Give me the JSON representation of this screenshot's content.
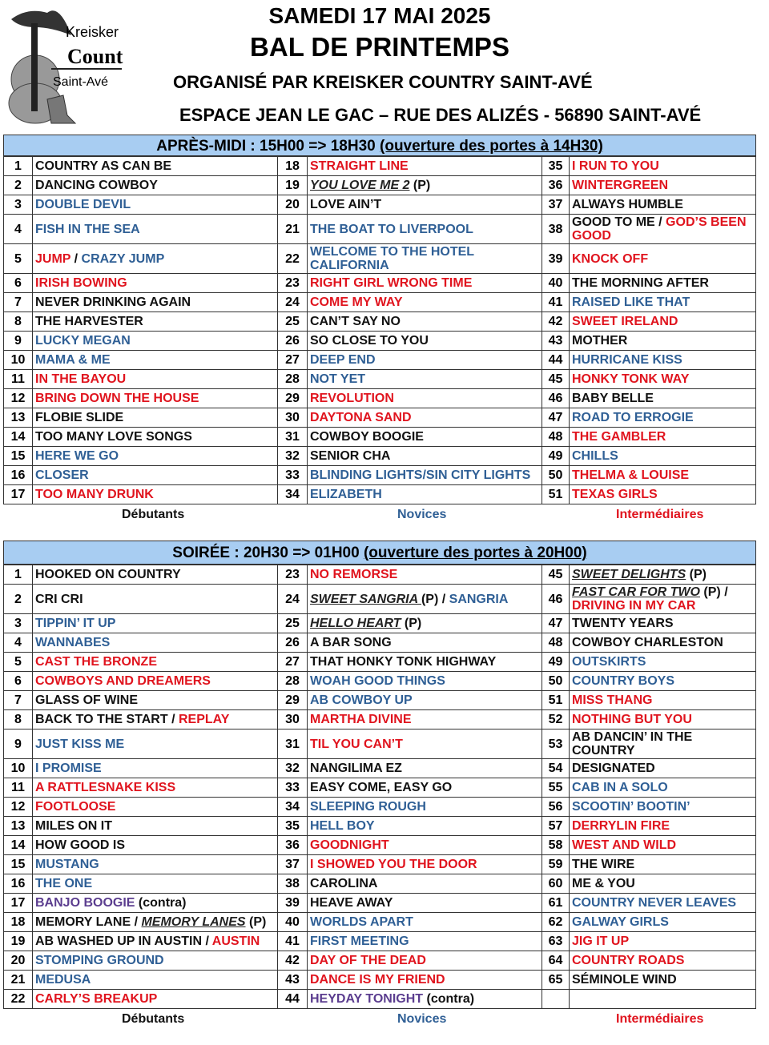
{
  "logo": {
    "line1": "Kreisker",
    "line2": "Country",
    "line3": "Saint-Avé"
  },
  "header": {
    "date": "SAMEDI 17 MAI 2025",
    "event": "BAL DE PRINTEMPS",
    "organizer": "ORGANISÉ PAR KREISKER COUNTRY SAINT-AVÉ",
    "venue": "ESPACE JEAN LE GAC – RUE DES ALIZÉS - 56890 SAINT-AVÉ"
  },
  "colors": {
    "black": "#111111",
    "blue": "#2f5f95",
    "red": "#e0141e",
    "purple": "#5b3d8f",
    "band": "#a8cdf2"
  },
  "levels": {
    "beginner": "Débutants",
    "novice": "Novices",
    "intermediate": "Intermédiaires"
  },
  "afternoon": {
    "title": "APRÈS-MIDI : 15H00 => 18H30 ",
    "doors": "(ouverture des portes à 14H30)",
    "rows": [
      [
        [
          "1",
          [
            [
              "COUNTRY AS CAN BE",
              "black"
            ]
          ]
        ],
        [
          "18",
          [
            [
              "STRAIGHT LINE",
              "red"
            ]
          ]
        ],
        [
          "35",
          [
            [
              "I RUN TO YOU",
              "red"
            ]
          ]
        ]
      ],
      [
        [
          "2",
          [
            [
              "DANCING COWBOY",
              "black"
            ]
          ]
        ],
        [
          "19",
          [
            [
              "YOU LOVE ME 2",
              "italic"
            ],
            [
              " (P)",
              "black"
            ]
          ]
        ],
        [
          "36",
          [
            [
              "WINTERGREEN",
              "red"
            ]
          ]
        ]
      ],
      [
        [
          "3",
          [
            [
              "DOUBLE DEVIL",
              "blue"
            ]
          ]
        ],
        [
          "20",
          [
            [
              "LOVE AIN’T",
              "black"
            ]
          ]
        ],
        [
          "37",
          [
            [
              "ALWAYS HUMBLE",
              "black"
            ]
          ]
        ]
      ],
      [
        [
          "4",
          [
            [
              "FISH IN THE SEA",
              "blue"
            ]
          ]
        ],
        [
          "21",
          [
            [
              "THE BOAT TO LIVERPOOL",
              "blue"
            ]
          ]
        ],
        [
          "38",
          [
            [
              "GOOD TO ME / ",
              "black"
            ],
            [
              "GOD’S BEEN GOOD",
              "red"
            ]
          ]
        ]
      ],
      [
        [
          "5",
          [
            [
              "JUMP",
              "red"
            ],
            [
              " / ",
              "black"
            ],
            [
              "CRAZY JUMP",
              "blue"
            ]
          ]
        ],
        [
          "22",
          [
            [
              "WELCOME TO THE HOTEL CALIFORNIA",
              "blue"
            ]
          ]
        ],
        [
          "39",
          [
            [
              "KNOCK OFF",
              "red"
            ]
          ]
        ]
      ],
      [
        [
          "6",
          [
            [
              "IRISH BOWING",
              "red"
            ]
          ]
        ],
        [
          "23",
          [
            [
              "RIGHT GIRL WRONG TIME",
              "red"
            ]
          ]
        ],
        [
          "40",
          [
            [
              "THE MORNING AFTER",
              "black"
            ]
          ]
        ]
      ],
      [
        [
          "7",
          [
            [
              "NEVER DRINKING AGAIN",
              "black"
            ]
          ]
        ],
        [
          "24",
          [
            [
              "COME MY WAY",
              "red"
            ]
          ]
        ],
        [
          "41",
          [
            [
              "RAISED LIKE THAT",
              "blue"
            ]
          ]
        ]
      ],
      [
        [
          "8",
          [
            [
              "THE HARVESTER",
              "black"
            ]
          ]
        ],
        [
          "25",
          [
            [
              "CAN’T SAY NO",
              "black"
            ]
          ]
        ],
        [
          "42",
          [
            [
              "SWEET IRELAND",
              "red"
            ]
          ]
        ]
      ],
      [
        [
          "9",
          [
            [
              "LUCKY MEGAN",
              "blue"
            ]
          ]
        ],
        [
          "26",
          [
            [
              "SO CLOSE TO YOU",
              "black"
            ]
          ]
        ],
        [
          "43",
          [
            [
              "MOTHER",
              "black"
            ]
          ]
        ]
      ],
      [
        [
          "10",
          [
            [
              "MAMA & ME",
              "blue"
            ]
          ]
        ],
        [
          "27",
          [
            [
              "DEEP END",
              "blue"
            ]
          ]
        ],
        [
          "44",
          [
            [
              "HURRICANE KISS",
              "blue"
            ]
          ]
        ]
      ],
      [
        [
          "11",
          [
            [
              "IN THE BAYOU",
              "red"
            ]
          ]
        ],
        [
          "28",
          [
            [
              "NOT YET",
              "blue"
            ]
          ]
        ],
        [
          "45",
          [
            [
              "HONKY TONK WAY",
              "red"
            ]
          ]
        ]
      ],
      [
        [
          "12",
          [
            [
              "BRING DOWN THE HOUSE",
              "red"
            ]
          ]
        ],
        [
          "29",
          [
            [
              "REVOLUTION",
              "red"
            ]
          ]
        ],
        [
          "46",
          [
            [
              "BABY BELLE",
              "black"
            ]
          ]
        ]
      ],
      [
        [
          "13",
          [
            [
              "FLOBIE SLIDE",
              "black"
            ]
          ]
        ],
        [
          "30",
          [
            [
              "DAYTONA SAND",
              "red"
            ]
          ]
        ],
        [
          "47",
          [
            [
              "ROAD TO ERROGIE",
              "blue"
            ]
          ]
        ]
      ],
      [
        [
          "14",
          [
            [
              "TOO MANY LOVE SONGS",
              "black"
            ]
          ]
        ],
        [
          "31",
          [
            [
              "COWBOY BOOGIE",
              "black"
            ]
          ]
        ],
        [
          "48",
          [
            [
              "THE GAMBLER",
              "red"
            ]
          ]
        ]
      ],
      [
        [
          "15",
          [
            [
              "HERE WE GO",
              "blue"
            ]
          ]
        ],
        [
          "32",
          [
            [
              "SENIOR CHA",
              "black"
            ]
          ]
        ],
        [
          "49",
          [
            [
              "CHILLS",
              "blue"
            ]
          ]
        ]
      ],
      [
        [
          "16",
          [
            [
              "CLOSER",
              "blue"
            ]
          ]
        ],
        [
          "33",
          [
            [
              "BLINDING LIGHTS/SIN CITY LIGHTS",
              "blue"
            ]
          ]
        ],
        [
          "50",
          [
            [
              "THELMA & LOUISE",
              "red"
            ]
          ]
        ]
      ],
      [
        [
          "17",
          [
            [
              "TOO MANY DRUNK",
              "red"
            ]
          ]
        ],
        [
          "34",
          [
            [
              "ELIZABETH",
              "blue"
            ]
          ]
        ],
        [
          "51",
          [
            [
              "TEXAS GIRLS",
              "red"
            ]
          ]
        ]
      ]
    ]
  },
  "evening": {
    "title": "SOIRÉE : 20H30 => 01H00 ",
    "doors": "(ouverture des portes à 20H00)",
    "rows": [
      [
        [
          "1",
          [
            [
              "HOOKED ON COUNTRY",
              "black"
            ]
          ]
        ],
        [
          "23",
          [
            [
              "NO REMORSE",
              "red"
            ]
          ]
        ],
        [
          "45",
          [
            [
              "SWEET DELIGHTS",
              "italic"
            ],
            [
              " (P)",
              "black"
            ]
          ]
        ]
      ],
      [
        [
          "2",
          [
            [
              "CRI CRI",
              "black"
            ]
          ]
        ],
        [
          "24",
          [
            [
              "SWEET SANGRIA ",
              "italic"
            ],
            [
              "(P) / ",
              "black"
            ],
            [
              "SANGRIA",
              "blue"
            ]
          ]
        ],
        [
          "46",
          [
            [
              "FAST CAR FOR TWO",
              "italic"
            ],
            [
              " (P) / ",
              "black"
            ],
            [
              "DRIVING IN MY CAR",
              "red"
            ]
          ]
        ]
      ],
      [
        [
          "3",
          [
            [
              "TIPPIN’ IT UP",
              "blue"
            ]
          ]
        ],
        [
          "25",
          [
            [
              "HELLO HEART",
              "italic"
            ],
            [
              " (P)",
              "black"
            ]
          ]
        ],
        [
          "47",
          [
            [
              "TWENTY YEARS",
              "black"
            ]
          ]
        ]
      ],
      [
        [
          "4",
          [
            [
              "WANNABES",
              "blue"
            ]
          ]
        ],
        [
          "26",
          [
            [
              "A BAR SONG",
              "black"
            ]
          ]
        ],
        [
          "48",
          [
            [
              "COWBOY CHARLESTON",
              "black"
            ]
          ]
        ]
      ],
      [
        [
          "5",
          [
            [
              "CAST THE BRONZE",
              "red"
            ]
          ]
        ],
        [
          "27",
          [
            [
              "THAT HONKY TONK HIGHWAY",
              "black"
            ]
          ]
        ],
        [
          "49",
          [
            [
              "OUTSKIRTS",
              "blue"
            ]
          ]
        ]
      ],
      [
        [
          "6",
          [
            [
              "COWBOYS AND DREAMERS",
              "red"
            ]
          ]
        ],
        [
          "28",
          [
            [
              "WOAH GOOD THINGS",
              "blue"
            ]
          ]
        ],
        [
          "50",
          [
            [
              "COUNTRY BOYS",
              "blue"
            ]
          ]
        ]
      ],
      [
        [
          "7",
          [
            [
              "GLASS OF WINE",
              "black"
            ]
          ]
        ],
        [
          "29",
          [
            [
              "AB COWBOY UP",
              "blue"
            ]
          ]
        ],
        [
          "51",
          [
            [
              "MISS THANG",
              "red"
            ]
          ]
        ]
      ],
      [
        [
          "8",
          [
            [
              "BACK TO THE START / ",
              "black"
            ],
            [
              "REPLAY",
              "red"
            ]
          ]
        ],
        [
          "30",
          [
            [
              "MARTHA DIVINE",
              "red"
            ]
          ]
        ],
        [
          "52",
          [
            [
              "NOTHING BUT YOU",
              "red"
            ]
          ]
        ]
      ],
      [
        [
          "9",
          [
            [
              "JUST KISS ME",
              "blue"
            ]
          ]
        ],
        [
          "31",
          [
            [
              "TIL YOU CAN’T",
              "red"
            ]
          ]
        ],
        [
          "53",
          [
            [
              "AB DANCIN’ IN THE COUNTRY",
              "black"
            ]
          ]
        ]
      ],
      [
        [
          "10",
          [
            [
              "I PROMISE",
              "blue"
            ]
          ]
        ],
        [
          "32",
          [
            [
              "NANGILIMA EZ",
              "black"
            ]
          ]
        ],
        [
          "54",
          [
            [
              "DESIGNATED",
              "black"
            ]
          ]
        ]
      ],
      [
        [
          "11",
          [
            [
              "A RATTLESNAKE KISS",
              "red"
            ]
          ]
        ],
        [
          "33",
          [
            [
              "EASY COME, EASY GO",
              "black"
            ]
          ]
        ],
        [
          "55",
          [
            [
              "CAB IN A SOLO",
              "blue"
            ]
          ]
        ]
      ],
      [
        [
          "12",
          [
            [
              "FOOTLOOSE",
              "red"
            ]
          ]
        ],
        [
          "34",
          [
            [
              "SLEEPING ROUGH",
              "blue"
            ]
          ]
        ],
        [
          "56",
          [
            [
              "SCOOTIN’ BOOTIN’",
              "blue"
            ]
          ]
        ]
      ],
      [
        [
          "13",
          [
            [
              "MILES ON IT",
              "black"
            ]
          ]
        ],
        [
          "35",
          [
            [
              "HELL BOY",
              "blue"
            ]
          ]
        ],
        [
          "57",
          [
            [
              "DERRYLIN FIRE",
              "red"
            ]
          ]
        ]
      ],
      [
        [
          "14",
          [
            [
              "HOW GOOD IS",
              "black"
            ]
          ]
        ],
        [
          "36",
          [
            [
              "GOODNIGHT",
              "red"
            ]
          ]
        ],
        [
          "58",
          [
            [
              "WEST AND WILD",
              "red"
            ]
          ]
        ]
      ],
      [
        [
          "15",
          [
            [
              "MUSTANG",
              "blue"
            ]
          ]
        ],
        [
          "37",
          [
            [
              "I SHOWED YOU THE DOOR",
              "red"
            ]
          ]
        ],
        [
          "59",
          [
            [
              "THE WIRE",
              "black"
            ]
          ]
        ]
      ],
      [
        [
          "16",
          [
            [
              "THE ONE",
              "blue"
            ]
          ]
        ],
        [
          "38",
          [
            [
              "CAROLINA",
              "black"
            ]
          ]
        ],
        [
          "60",
          [
            [
              "ME & YOU",
              "black"
            ]
          ]
        ]
      ],
      [
        [
          "17",
          [
            [
              "BANJO BOOGIE",
              "purple"
            ],
            [
              " (contra)",
              "black"
            ]
          ]
        ],
        [
          "39",
          [
            [
              "HEAVE AWAY",
              "black"
            ]
          ]
        ],
        [
          "61",
          [
            [
              "COUNTRY NEVER LEAVES",
              "blue"
            ]
          ]
        ]
      ],
      [
        [
          "18",
          [
            [
              "MEMORY LANE / ",
              "black"
            ],
            [
              "MEMORY LANES",
              "italic"
            ],
            [
              " (P)",
              "black"
            ]
          ]
        ],
        [
          "40",
          [
            [
              "WORLDS APART",
              "blue"
            ]
          ]
        ],
        [
          "62",
          [
            [
              "GALWAY GIRLS",
              "blue"
            ]
          ]
        ]
      ],
      [
        [
          "19",
          [
            [
              "AB WASHED UP IN AUSTIN / ",
              "black"
            ],
            [
              "AUSTIN",
              "red"
            ]
          ]
        ],
        [
          "41",
          [
            [
              "FIRST MEETING",
              "blue"
            ]
          ]
        ],
        [
          "63",
          [
            [
              "JIG IT UP",
              "red"
            ]
          ]
        ]
      ],
      [
        [
          "20",
          [
            [
              "STOMPING GROUND",
              "blue"
            ]
          ]
        ],
        [
          "42",
          [
            [
              "DAY OF THE DEAD",
              "red"
            ]
          ]
        ],
        [
          "64",
          [
            [
              "COUNTRY ROADS",
              "red"
            ]
          ]
        ]
      ],
      [
        [
          "21",
          [
            [
              "MEDUSA",
              "blue"
            ]
          ]
        ],
        [
          "43",
          [
            [
              "DANCE IS MY FRIEND",
              "red"
            ]
          ]
        ],
        [
          "65",
          [
            [
              "SÉMINOLE WIND",
              "black"
            ]
          ]
        ]
      ],
      [
        [
          "22",
          [
            [
              "CARLY’S BREAKUP",
              "red"
            ]
          ]
        ],
        [
          "44",
          [
            [
              "HEYDAY TONIGHT",
              "purple"
            ],
            [
              " (contra)",
              "black"
            ]
          ]
        ],
        [
          "",
          []
        ]
      ]
    ]
  }
}
